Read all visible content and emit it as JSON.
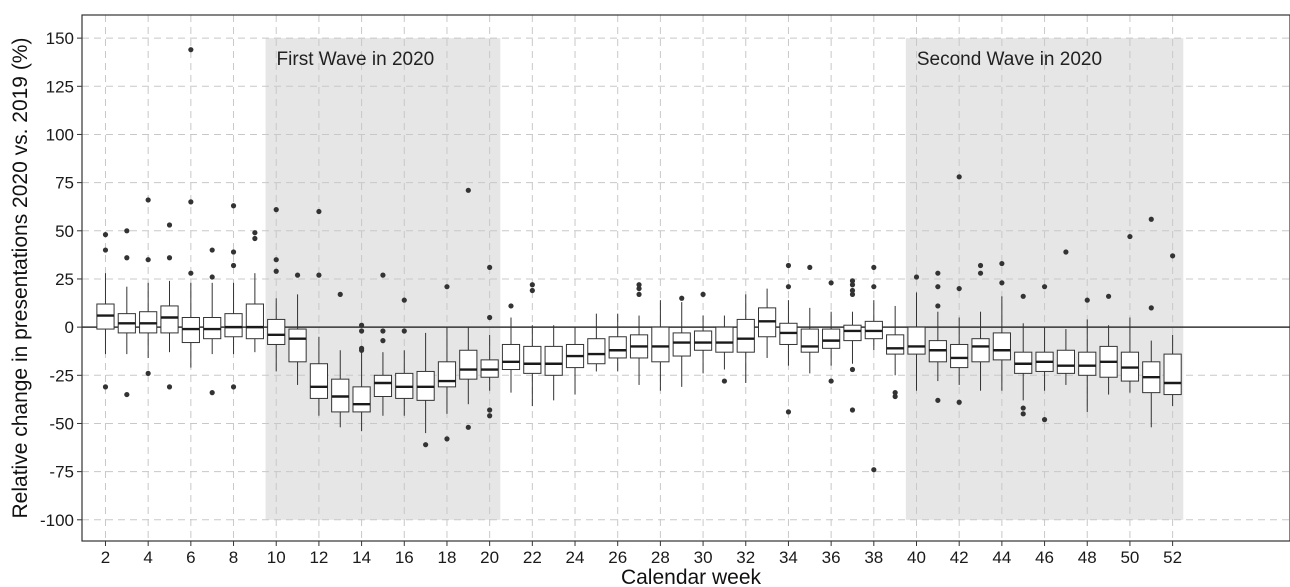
{
  "chart_data": {
    "type": "box",
    "xlabel": "Calendar week",
    "ylabel": "Relative change in presentations 2020 vs. 2019 (%)",
    "x_ticks": [
      2,
      4,
      6,
      8,
      10,
      12,
      14,
      16,
      18,
      20,
      22,
      24,
      26,
      28,
      30,
      32,
      34,
      36,
      38,
      40,
      42,
      44,
      46,
      48,
      50,
      52
    ],
    "y_ticks": [
      150,
      125,
      100,
      75,
      50,
      25,
      0,
      -25,
      -50,
      -75,
      -100
    ],
    "xlim": [
      0.9,
      57.5
    ],
    "ylim": [
      -111,
      162
    ],
    "grid": true,
    "reference_line": 0,
    "colors": {
      "shade": "#e6e6e6",
      "grid": "#c8c8c8",
      "box_stroke": "#333333",
      "outlier": "#333333",
      "zero_line": "#333333"
    },
    "shaded_regions": [
      {
        "label": "First Wave in 2020",
        "x_start": 9.5,
        "x_end": 20.5,
        "y_start": -100,
        "y_end": 150
      },
      {
        "label": "Second Wave in 2020",
        "x_start": 39.5,
        "x_end": 52.5,
        "y_start": -100,
        "y_end": 150
      }
    ],
    "boxes": [
      {
        "week": 2,
        "q1": -1,
        "median": 6,
        "q3": 12,
        "low": -14,
        "high": 28,
        "outliers": [
          48,
          40,
          -31
        ]
      },
      {
        "week": 3,
        "q1": -3,
        "median": 2,
        "q3": 7,
        "low": -14,
        "high": 21,
        "outliers": [
          50,
          36,
          -35
        ]
      },
      {
        "week": 4,
        "q1": -3,
        "median": 2,
        "q3": 8,
        "low": -16,
        "high": 23,
        "outliers": [
          66,
          35,
          -24
        ]
      },
      {
        "week": 5,
        "q1": -3,
        "median": 5,
        "q3": 11,
        "low": -13,
        "high": 24,
        "outliers": [
          53,
          36,
          -31
        ]
      },
      {
        "week": 6,
        "q1": -8,
        "median": -1,
        "q3": 5,
        "low": -21,
        "high": 23,
        "outliers": [
          144,
          65,
          28
        ]
      },
      {
        "week": 7,
        "q1": -6,
        "median": -1,
        "q3": 5,
        "low": -14,
        "high": 23,
        "outliers": [
          40,
          26,
          -34
        ]
      },
      {
        "week": 8,
        "q1": -5,
        "median": 0,
        "q3": 7,
        "low": -14,
        "high": 23,
        "outliers": [
          63,
          39,
          32,
          -31
        ]
      },
      {
        "week": 9,
        "q1": -6,
        "median": 0,
        "q3": 12,
        "low": -13,
        "high": 28,
        "outliers": [
          49,
          46
        ]
      },
      {
        "week": 10,
        "q1": -9,
        "median": -4,
        "q3": 4,
        "low": -23,
        "high": 15,
        "outliers": [
          61,
          35,
          29
        ]
      },
      {
        "week": 11,
        "q1": -18,
        "median": -6,
        "q3": -1,
        "low": -30,
        "high": 17,
        "outliers": [
          27
        ]
      },
      {
        "week": 12,
        "q1": -37,
        "median": -31,
        "q3": -19,
        "low": -46,
        "high": -5,
        "outliers": [
          60,
          27
        ]
      },
      {
        "week": 13,
        "q1": -44,
        "median": -36,
        "q3": -27,
        "low": -52,
        "high": -12,
        "outliers": [
          17
        ]
      },
      {
        "week": 14,
        "q1": -44,
        "median": -40,
        "q3": -31,
        "low": -54,
        "high": -12,
        "outliers": [
          1,
          -2,
          -11,
          -12
        ]
      },
      {
        "week": 15,
        "q1": -36,
        "median": -29,
        "q3": -25,
        "low": -46,
        "high": -13,
        "outliers": [
          27,
          -2,
          -7
        ]
      },
      {
        "week": 16,
        "q1": -37,
        "median": -31,
        "q3": -24,
        "low": -46,
        "high": -12,
        "outliers": [
          14,
          -2
        ]
      },
      {
        "week": 17,
        "q1": -38,
        "median": -31,
        "q3": -23,
        "low": -55,
        "high": -3,
        "outliers": [
          -61
        ]
      },
      {
        "week": 18,
        "q1": -31,
        "median": -28,
        "q3": -18,
        "low": -45,
        "high": 0,
        "outliers": [
          21,
          -58
        ]
      },
      {
        "week": 19,
        "q1": -27,
        "median": -22,
        "q3": -12,
        "low": -40,
        "high": 0,
        "outliers": [
          71,
          -52
        ]
      },
      {
        "week": 20,
        "q1": -26,
        "median": -22,
        "q3": -17,
        "low": -33,
        "high": -4,
        "outliers": [
          31,
          5,
          -43,
          -46
        ]
      },
      {
        "week": 21,
        "q1": -22,
        "median": -18,
        "q3": -9,
        "low": -34,
        "high": 5,
        "outliers": [
          11
        ]
      },
      {
        "week": 22,
        "q1": -24,
        "median": -19,
        "q3": -10,
        "low": -41,
        "high": 1,
        "outliers": [
          22,
          19
        ]
      },
      {
        "week": 23,
        "q1": -25,
        "median": -19,
        "q3": -10,
        "low": -38,
        "high": 1,
        "outliers": []
      },
      {
        "week": 24,
        "q1": -21,
        "median": -15,
        "q3": -9,
        "low": -35,
        "high": 0,
        "outliers": []
      },
      {
        "week": 25,
        "q1": -19,
        "median": -14,
        "q3": -6,
        "low": -23,
        "high": 7,
        "outliers": []
      },
      {
        "week": 26,
        "q1": -16,
        "median": -12,
        "q3": -5,
        "low": -23,
        "high": 7,
        "outliers": []
      },
      {
        "week": 27,
        "q1": -16,
        "median": -10,
        "q3": -4,
        "low": -30,
        "high": 6,
        "outliers": [
          22,
          20,
          17
        ]
      },
      {
        "week": 28,
        "q1": -18,
        "median": -10,
        "q3": 0,
        "low": -33,
        "high": 14,
        "outliers": []
      },
      {
        "week": 29,
        "q1": -15,
        "median": -8,
        "q3": -3,
        "low": -31,
        "high": 13,
        "outliers": [
          15
        ]
      },
      {
        "week": 30,
        "q1": -12,
        "median": -8,
        "q3": -2,
        "low": -24,
        "high": 6,
        "outliers": [
          17
        ]
      },
      {
        "week": 31,
        "q1": -13,
        "median": -8,
        "q3": 0,
        "low": -22,
        "high": 6,
        "outliers": [
          -28
        ]
      },
      {
        "week": 32,
        "q1": -13,
        "median": -6,
        "q3": 4,
        "low": -29,
        "high": 17,
        "outliers": []
      },
      {
        "week": 33,
        "q1": -5,
        "median": 3,
        "q3": 10,
        "low": -16,
        "high": 20,
        "outliers": []
      },
      {
        "week": 34,
        "q1": -9,
        "median": -3,
        "q3": 2,
        "low": -20,
        "high": 14,
        "outliers": [
          32,
          21,
          -44
        ]
      },
      {
        "week": 35,
        "q1": -13,
        "median": -10,
        "q3": -1,
        "low": -24,
        "high": 10,
        "outliers": [
          31
        ]
      },
      {
        "week": 36,
        "q1": -11,
        "median": -7,
        "q3": -1,
        "low": -20,
        "high": 8,
        "outliers": [
          23,
          -28
        ]
      },
      {
        "week": 37,
        "q1": -7,
        "median": -2,
        "q3": 1,
        "low": -19,
        "high": 8,
        "outliers": [
          24,
          22,
          19,
          17,
          -22,
          -43
        ]
      },
      {
        "week": 38,
        "q1": -6,
        "median": -2,
        "q3": 3,
        "low": -12,
        "high": 14,
        "outliers": [
          31,
          21,
          -74
        ]
      },
      {
        "week": 39,
        "q1": -14,
        "median": -11,
        "q3": -4,
        "low": -25,
        "high": 11,
        "outliers": [
          -34,
          -36
        ]
      },
      {
        "week": 40,
        "q1": -14,
        "median": -10,
        "q3": 0,
        "low": -33,
        "high": 18,
        "outliers": [
          26
        ]
      },
      {
        "week": 41,
        "q1": -18,
        "median": -12,
        "q3": -7,
        "low": -28,
        "high": 8,
        "outliers": [
          28,
          21,
          11,
          -38
        ]
      },
      {
        "week": 42,
        "q1": -21,
        "median": -16,
        "q3": -9,
        "low": -30,
        "high": 5,
        "outliers": [
          78,
          20,
          -39
        ]
      },
      {
        "week": 43,
        "q1": -18,
        "median": -10,
        "q3": -6,
        "low": -33,
        "high": 8,
        "outliers": [
          32,
          28
        ]
      },
      {
        "week": 44,
        "q1": -17,
        "median": -12,
        "q3": -3,
        "low": -33,
        "high": 16,
        "outliers": [
          33,
          23
        ]
      },
      {
        "week": 45,
        "q1": -24,
        "median": -19,
        "q3": -13,
        "low": -38,
        "high": 2,
        "outliers": [
          16,
          -42,
          -45
        ]
      },
      {
        "week": 46,
        "q1": -23,
        "median": -18,
        "q3": -13,
        "low": -33,
        "high": 0,
        "outliers": [
          21,
          -48
        ]
      },
      {
        "week": 47,
        "q1": -24,
        "median": -20,
        "q3": -12,
        "low": -30,
        "high": -1,
        "outliers": [
          39
        ]
      },
      {
        "week": 48,
        "q1": -25,
        "median": -20,
        "q3": -13,
        "low": -44,
        "high": 4,
        "outliers": [
          14
        ]
      },
      {
        "week": 49,
        "q1": -26,
        "median": -18,
        "q3": -10,
        "low": -35,
        "high": 1,
        "outliers": [
          16
        ]
      },
      {
        "week": 50,
        "q1": -28,
        "median": -21,
        "q3": -13,
        "low": -34,
        "high": 5,
        "outliers": [
          47
        ]
      },
      {
        "week": 51,
        "q1": -34,
        "median": -26,
        "q3": -18,
        "low": -52,
        "high": -7,
        "outliers": [
          56,
          10
        ]
      },
      {
        "week": 52,
        "q1": -35,
        "median": -29,
        "q3": -14,
        "low": -41,
        "high": -4,
        "outliers": [
          37
        ]
      }
    ]
  }
}
